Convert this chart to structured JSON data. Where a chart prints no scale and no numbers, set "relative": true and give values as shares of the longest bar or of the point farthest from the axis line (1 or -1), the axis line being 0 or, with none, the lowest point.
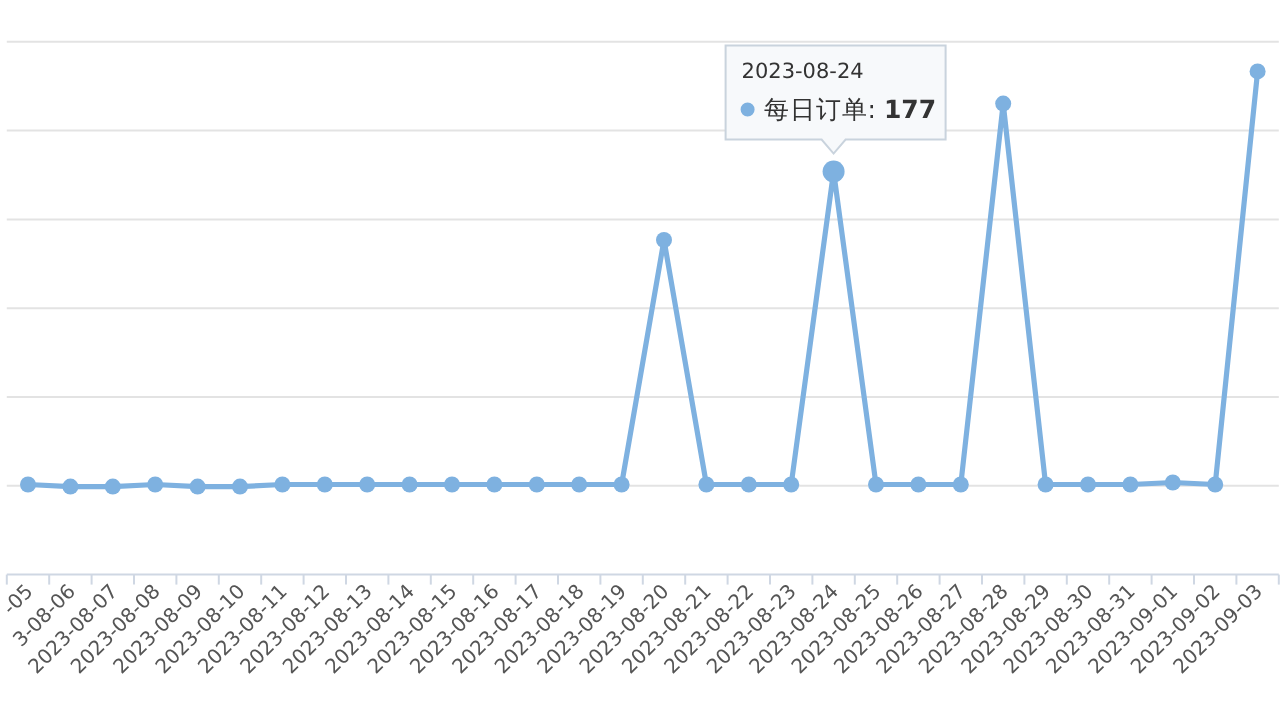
{
  "chart_data": {
    "type": "line",
    "relative": true,
    "grid": "y",
    "marker": "circle",
    "categories": [
      "-05",
      "3-08-06",
      "2023-08-07",
      "2023-08-08",
      "2023-08-09",
      "2023-08-10",
      "2023-08-11",
      "2023-08-12",
      "2023-08-13",
      "2023-08-14",
      "2023-08-15",
      "2023-08-16",
      "2023-08-17",
      "2023-08-18",
      "2023-08-19",
      "2023-08-20",
      "2023-08-21",
      "2023-08-22",
      "2023-08-23",
      "2023-08-24",
      "2023-08-25",
      "2023-08-26",
      "2023-08-27",
      "2023-08-28",
      "2023-08-29",
      "2023-08-30",
      "2023-08-31",
      "2023-09-01",
      "2023-09-02",
      "2023-09-03"
    ],
    "series": [
      {
        "color": "#7eb1e0",
        "values": [
          0.179,
          0.175,
          0.175,
          0.179,
          0.175,
          0.175,
          0.179,
          0.179,
          0.179,
          0.179,
          0.179,
          0.179,
          0.179,
          0.179,
          0.179,
          0.665,
          0.179,
          0.179,
          0.179,
          0.801,
          0.179,
          0.179,
          0.179,
          0.936,
          0.179,
          0.179,
          0.179,
          0.183,
          0.179,
          1
        ]
      }
    ],
    "annotations": [
      "2023-08-24",
      "每日订单: **177**"
    ]
  }
}
